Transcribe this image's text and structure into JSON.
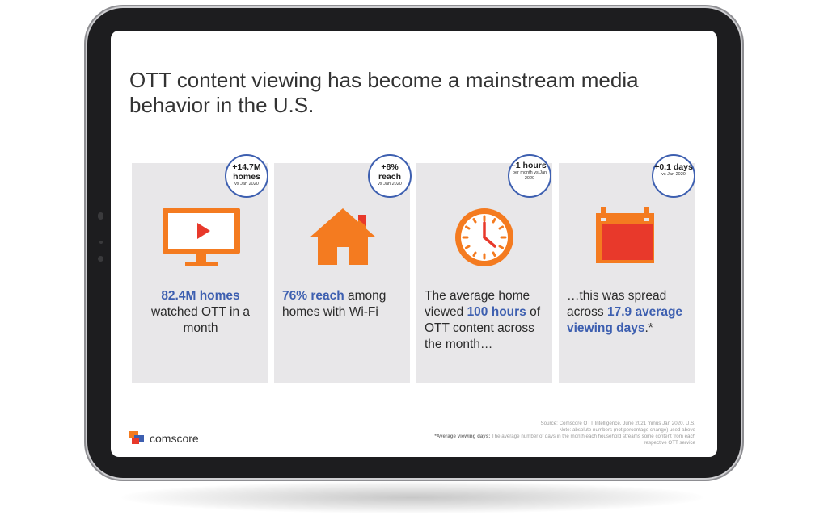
{
  "title": "OTT content viewing has become a mainstream media behavior in the U.S.",
  "brand": {
    "name": "comscore"
  },
  "cards": [
    {
      "badge": {
        "main": "+14.7M homes",
        "sub": "vs Jan 2020"
      },
      "icon": "tv-play-icon",
      "highlight": "82.4M homes",
      "text": "watched OTT in a month"
    },
    {
      "badge": {
        "main": "+8% reach",
        "sub": "vs Jan 2020"
      },
      "icon": "house-icon",
      "highlight": "76% reach",
      "text": "among homes with Wi-Fi"
    },
    {
      "badge": {
        "main": "-1 hours",
        "sub": "per month vs Jan 2020"
      },
      "icon": "clock-icon",
      "text_before": "The average home viewed",
      "highlight": "100 hours",
      "text_after": "of OTT content across the month…"
    },
    {
      "badge": {
        "main": "+0.1 days",
        "sub": "vs Jan 2020"
      },
      "icon": "calendar-icon",
      "text_before": "…this was spread across",
      "highlight": "17.9 average viewing days",
      "text_after": ".*"
    }
  ],
  "source": {
    "line1": "Source: Comscore OTT Intelligence, June 2021 minus Jan 2020, U.S.",
    "line2": "Note: absolute numbers (not percentage change) used above",
    "def_label": "*Average viewing days:",
    "def_text": "The average number of days in the month each household streams some content from each respective OTT service"
  },
  "colors": {
    "accent_blue": "#3d5fb0",
    "icon_orange": "#f47b20",
    "icon_red": "#e8392b",
    "card_bg": "#e8e7e9"
  }
}
